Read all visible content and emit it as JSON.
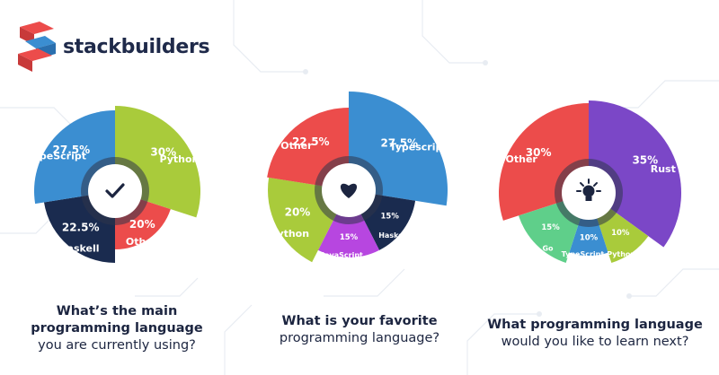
{
  "brand": {
    "name": "stackbuilders"
  },
  "colors": {
    "red": "#ec4c4b",
    "lime": "#a9cb3b",
    "blue": "#3b8ed1",
    "navy": "#1a2b4f",
    "purple": "#7b47c7",
    "magenta": "#b746e0",
    "green": "#5fcf8a",
    "hub": "#30344a",
    "center": "#ffffff",
    "text": "#1c2540"
  },
  "chart_data": [
    {
      "type": "pie",
      "icon": "check-icon",
      "caption_bold": "What’s the main programming language",
      "caption_light": "you are currently using?",
      "slices": [
        {
          "label": "Python",
          "value": 30,
          "value_label": "30%",
          "color": "lime"
        },
        {
          "label": "Other",
          "value": 20,
          "value_label": "20%",
          "color": "red"
        },
        {
          "label": "Haskell",
          "value": 22.5,
          "value_label": "22.5%",
          "color": "navy"
        },
        {
          "label": "TypeScript",
          "value": 27.5,
          "value_label": "27.5%",
          "color": "blue"
        }
      ]
    },
    {
      "type": "pie",
      "icon": "heart-icon",
      "caption_bold": "What is your favorite",
      "caption_light": "programming language?",
      "slices": [
        {
          "label": "Typescript",
          "value": 27.5,
          "value_label": "27.5%",
          "color": "blue"
        },
        {
          "label": "Haskell",
          "value": 15,
          "value_label": "15%",
          "color": "navy"
        },
        {
          "label": "JavaScript",
          "value": 15,
          "value_label": "15%",
          "color": "magenta"
        },
        {
          "label": "Python",
          "value": 20,
          "value_label": "20%",
          "color": "lime"
        },
        {
          "label": "Other",
          "value": 22.5,
          "value_label": "22.5%",
          "color": "red"
        }
      ]
    },
    {
      "type": "pie",
      "icon": "lightbulb-icon",
      "caption_bold": "What programming language",
      "caption_light": "would you like to learn next?",
      "slices": [
        {
          "label": "Rust",
          "value": 35,
          "value_label": "35%",
          "color": "purple"
        },
        {
          "label": "Python",
          "value": 10,
          "value_label": "10%",
          "color": "lime"
        },
        {
          "label": "TypeScript",
          "value": 10,
          "value_label": "10%",
          "color": "blue"
        },
        {
          "label": "Go",
          "value": 15,
          "value_label": "15%",
          "color": "green"
        },
        {
          "label": "Other",
          "value": 30,
          "value_label": "30%",
          "color": "red"
        }
      ]
    }
  ]
}
